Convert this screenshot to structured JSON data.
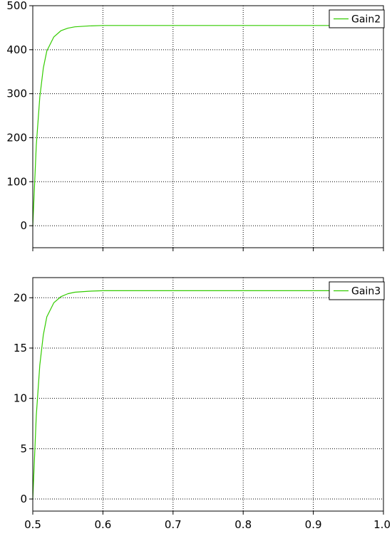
{
  "chart_data": [
    {
      "type": "line",
      "xlim": [
        0.5,
        1.0
      ],
      "ylim": [
        -50,
        500
      ],
      "xticks": [
        0.5,
        0.6,
        0.7,
        0.8,
        0.9,
        1.0
      ],
      "yticks": [
        0,
        100,
        200,
        300,
        400,
        500
      ],
      "ytick_labels": [
        "0",
        "100",
        "200",
        "300",
        "400",
        "500"
      ],
      "xtick_labels": [],
      "grid": true,
      "legend_position": "top-right",
      "series": [
        {
          "name": "Gain2",
          "color": "#33cc00",
          "x": [
            0.5,
            0.505,
            0.51,
            0.515,
            0.52,
            0.53,
            0.54,
            0.55,
            0.56,
            0.58,
            0.6,
            0.62,
            0.65,
            0.7,
            0.8,
            0.9,
            1.0
          ],
          "y": [
            0,
            183,
            292,
            358,
            397,
            429,
            443,
            449,
            452,
            454,
            455,
            455,
            455,
            455,
            455,
            455,
            455
          ]
        }
      ]
    },
    {
      "type": "line",
      "xlim": [
        0.5,
        1.0
      ],
      "ylim": [
        -1.2,
        22
      ],
      "xticks": [
        0.5,
        0.6,
        0.7,
        0.8,
        0.9,
        1.0
      ],
      "yticks": [
        0,
        5,
        10,
        15,
        20
      ],
      "ytick_labels": [
        "0",
        "5",
        "10",
        "15",
        "20"
      ],
      "xtick_labels": [
        "0.5",
        "0.6",
        "0.7",
        "0.8",
        "0.9",
        "1.0"
      ],
      "grid": true,
      "legend_position": "top-right",
      "series": [
        {
          "name": "Gain3",
          "color": "#33cc00",
          "x": [
            0.5,
            0.505,
            0.51,
            0.515,
            0.52,
            0.53,
            0.54,
            0.55,
            0.56,
            0.58,
            0.6,
            0.62,
            0.65,
            0.7,
            0.8,
            0.9,
            1.0
          ],
          "y": [
            0,
            8.3,
            13.3,
            16.3,
            18.1,
            19.5,
            20.1,
            20.4,
            20.55,
            20.65,
            20.7,
            20.7,
            20.7,
            20.7,
            20.7,
            20.7,
            20.7
          ]
        }
      ]
    }
  ]
}
